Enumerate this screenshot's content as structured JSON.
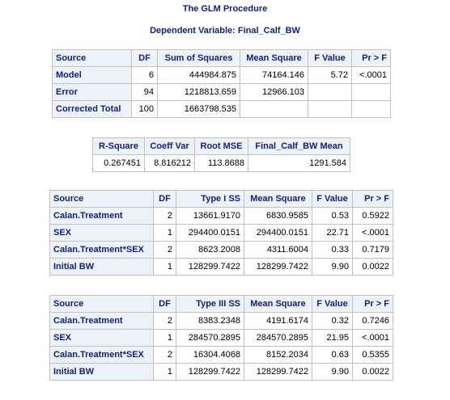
{
  "title": "The GLM Procedure",
  "subtitle": "Dependent Variable: Final_Calf_BW",
  "anova": {
    "headers": [
      "Source",
      "DF",
      "Sum of Squares",
      "Mean Square",
      "F Value",
      "Pr > F"
    ],
    "rows": [
      [
        "Model",
        "6",
        "444984.875",
        "74164.146",
        "5.72",
        "<.0001"
      ],
      [
        "Error",
        "94",
        "1218813.659",
        "12966.103",
        "",
        ""
      ],
      [
        "Corrected Total",
        "100",
        "1663798.535",
        "",
        "",
        ""
      ]
    ]
  },
  "fit": {
    "headers": [
      "R-Square",
      "Coeff Var",
      "Root MSE",
      "Final_Calf_BW Mean"
    ],
    "rows": [
      [
        "0.267451",
        "8.816212",
        "113.8688",
        "1291.584"
      ]
    ]
  },
  "type1": {
    "headers": [
      "Source",
      "DF",
      "Type I SS",
      "Mean Square",
      "F Value",
      "Pr > F"
    ],
    "rows": [
      [
        "Calan.Treatment",
        "2",
        "13661.9170",
        "6830.9585",
        "0.53",
        "0.5922"
      ],
      [
        "SEX",
        "1",
        "294400.0151",
        "294400.0151",
        "22.71",
        "<.0001"
      ],
      [
        "Calan.Treatment*SEX",
        "2",
        "8623.2008",
        "4311.6004",
        "0.33",
        "0.7179"
      ],
      [
        "Initial BW",
        "1",
        "128299.7422",
        "128299.7422",
        "9.90",
        "0.0022"
      ]
    ]
  },
  "type3": {
    "headers": [
      "Source",
      "DF",
      "Type III SS",
      "Mean Square",
      "F Value",
      "Pr > F"
    ],
    "rows": [
      [
        "Calan.Treatment",
        "2",
        "8383.2348",
        "4191.6174",
        "0.32",
        "0.7246"
      ],
      [
        "SEX",
        "1",
        "284570.2895",
        "284570.2895",
        "21.95",
        "<.0001"
      ],
      [
        "Calan.Treatment*SEX",
        "2",
        "16304.4068",
        "8152.2034",
        "0.63",
        "0.5355"
      ],
      [
        "Initial BW",
        "1",
        "128299.7422",
        "128299.7422",
        "9.90",
        "0.0022"
      ]
    ]
  }
}
